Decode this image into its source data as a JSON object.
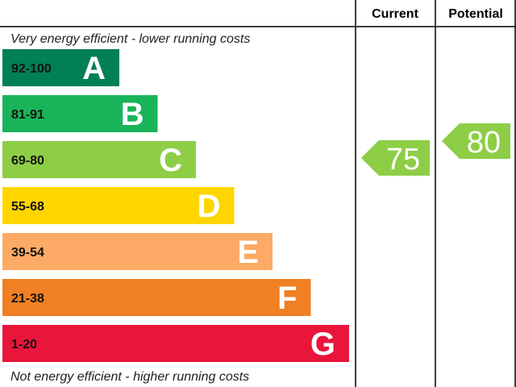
{
  "header": {
    "current": "Current",
    "potential": "Potential"
  },
  "top_note": "Very energy efficient - lower running costs",
  "bottom_note": "Not energy efficient - higher running costs",
  "bands": [
    {
      "range": "92-100",
      "letter": "A",
      "color": "#008054"
    },
    {
      "range": "81-91",
      "letter": "B",
      "color": "#19b459"
    },
    {
      "range": "69-80",
      "letter": "C",
      "color": "#8dce46"
    },
    {
      "range": "55-68",
      "letter": "D",
      "color": "#ffd500"
    },
    {
      "range": "39-54",
      "letter": "E",
      "color": "#fcaa65"
    },
    {
      "range": "21-38",
      "letter": "F",
      "color": "#ef8023"
    },
    {
      "range": "1-20",
      "letter": "G",
      "color": "#e9153b"
    }
  ],
  "current": 75,
  "potential": 80
}
